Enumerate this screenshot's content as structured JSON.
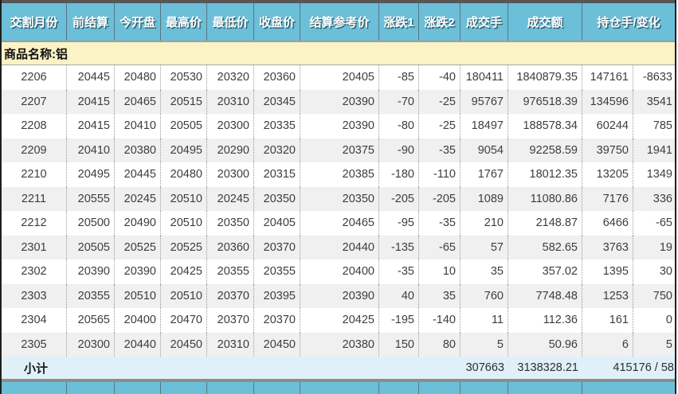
{
  "header": {
    "columns": [
      "交割月份",
      "前结算",
      "今开盘",
      "最高价",
      "最低价",
      "收盘价",
      "结算参考价",
      "涨跌1",
      "涨跌2",
      "成交手",
      "成交额",
      "持仓手/变化"
    ]
  },
  "product": {
    "label": "商品名称:铝"
  },
  "table": {
    "rows": [
      [
        "2206",
        "20445",
        "20480",
        "20530",
        "20320",
        "20360",
        "20405",
        "-85",
        "-40",
        "180411",
        "1840879.35",
        "147161",
        "-8633"
      ],
      [
        "2207",
        "20415",
        "20465",
        "20515",
        "20310",
        "20345",
        "20390",
        "-70",
        "-25",
        "95767",
        "976518.39",
        "134596",
        "3541"
      ],
      [
        "2208",
        "20415",
        "20410",
        "20505",
        "20300",
        "20335",
        "20390",
        "-80",
        "-25",
        "18497",
        "188578.34",
        "60244",
        "785"
      ],
      [
        "2209",
        "20410",
        "20380",
        "20495",
        "20290",
        "20320",
        "20375",
        "-90",
        "-35",
        "9054",
        "92258.59",
        "39750",
        "1941"
      ],
      [
        "2210",
        "20495",
        "20445",
        "20480",
        "20300",
        "20315",
        "20385",
        "-180",
        "-110",
        "1767",
        "18012.35",
        "13205",
        "1349"
      ],
      [
        "2211",
        "20555",
        "20245",
        "20510",
        "20245",
        "20350",
        "20350",
        "-205",
        "-205",
        "1089",
        "11080.86",
        "7176",
        "336"
      ],
      [
        "2212",
        "20500",
        "20490",
        "20510",
        "20350",
        "20405",
        "20465",
        "-95",
        "-35",
        "210",
        "2148.87",
        "6466",
        "-65"
      ],
      [
        "2301",
        "20505",
        "20525",
        "20525",
        "20360",
        "20370",
        "20440",
        "-135",
        "-65",
        "57",
        "582.65",
        "3763",
        "19"
      ],
      [
        "2302",
        "20390",
        "20390",
        "20425",
        "20355",
        "20355",
        "20400",
        "-35",
        "10",
        "35",
        "357.02",
        "1395",
        "30"
      ],
      [
        "2303",
        "20355",
        "20510",
        "20510",
        "20370",
        "20395",
        "20390",
        "40",
        "35",
        "760",
        "7748.48",
        "1253",
        "750"
      ],
      [
        "2304",
        "20565",
        "20400",
        "20470",
        "20370",
        "20370",
        "20425",
        "-195",
        "-140",
        "11",
        "112.36",
        "161",
        "0"
      ],
      [
        "2305",
        "20300",
        "20440",
        "20450",
        "20310",
        "20450",
        "20380",
        "150",
        "80",
        "5",
        "50.96",
        "6",
        "5"
      ]
    ]
  },
  "subtotal": {
    "label": "小计",
    "volume": "307663",
    "turnover": "3138328.21",
    "open_interest_change": "415176 / 58"
  },
  "colors": {
    "header_bg": "#6CBFD9",
    "header_text": "#FFFFFF",
    "product_row_bg": "#FBF2C6",
    "subtotal_bg": "#DFF0F8",
    "alt_row_bg": "#F0F0F0",
    "row_bg": "#FFFFFF",
    "data_text": "#3D3D3D"
  }
}
